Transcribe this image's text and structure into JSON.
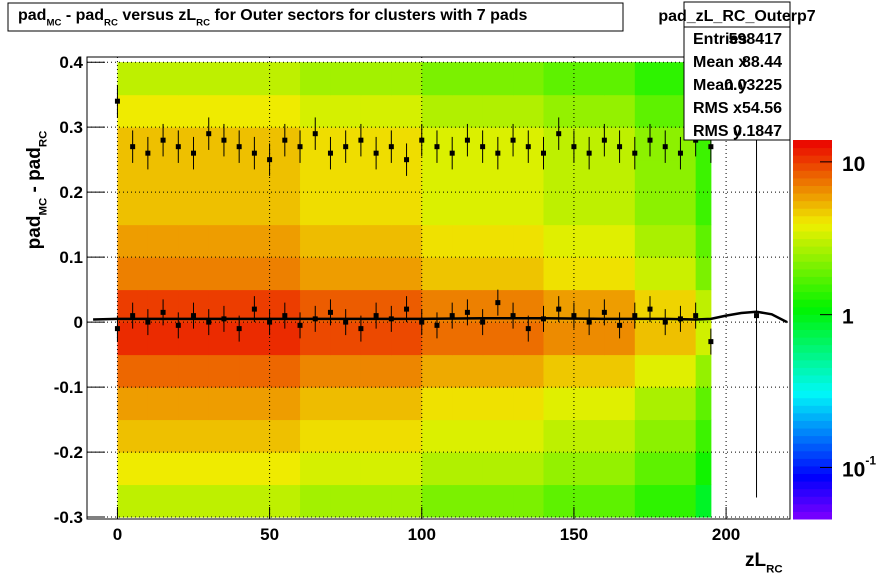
{
  "chart_data": {
    "type": "hist2d",
    "title_parts": [
      "pad",
      "MC",
      " - pad",
      "RC",
      " versus zL",
      "RC",
      " for Outer sectors for clusters with 7 pads"
    ],
    "xlabel_parts": [
      "zL",
      "RC"
    ],
    "ylabel_parts": [
      "pad",
      "MC",
      " - pad",
      "RC"
    ],
    "xlim": [
      -10,
      221
    ],
    "ylim": [
      -0.303,
      0.408
    ],
    "xticks": [
      0,
      50,
      100,
      150,
      200
    ],
    "yticks": [
      -0.3,
      -0.2,
      -0.1,
      0,
      0.1,
      0.2,
      0.3,
      0.4
    ],
    "grid": true,
    "zlog": true,
    "zlim": [
      0.046,
      13.9
    ],
    "zticks": [
      {
        "value": 0.1,
        "label": "10",
        "sup": "-1"
      },
      1,
      10
    ],
    "heatmap": {
      "xbins": [
        0,
        10,
        20,
        30,
        40,
        50,
        60,
        70,
        80,
        90,
        100,
        110,
        120,
        130,
        140,
        150,
        160,
        170,
        180,
        190,
        195
      ],
      "ybins": [
        -0.3,
        -0.25,
        -0.2,
        -0.15,
        -0.1,
        -0.05,
        0,
        0.05,
        0.1,
        0.15,
        0.2,
        0.25,
        0.3,
        0.35,
        0.4
      ],
      "z": [
        [
          3,
          3,
          3,
          3,
          3,
          3,
          2.6,
          2.6,
          2.6,
          2.6,
          2.1,
          2.1,
          2.1,
          2.1,
          1.8,
          1.8,
          1.8,
          1.4,
          1.4,
          0.9
        ],
        [
          4,
          4,
          4,
          4,
          4,
          4,
          3.4,
          3.4,
          3.4,
          3.4,
          2.8,
          2.8,
          2.8,
          2.8,
          2.4,
          2.4,
          2.4,
          1.8,
          1.8,
          1.2
        ],
        [
          5,
          5,
          5,
          5,
          5,
          5,
          4.3,
          4.3,
          4.3,
          4.3,
          3.5,
          3.5,
          3.5,
          3.5,
          3,
          3,
          3,
          2.3,
          2.3,
          1.5
        ],
        [
          6,
          6,
          6,
          6,
          6,
          6,
          5.1,
          5.1,
          5.1,
          5.1,
          4.2,
          4.2,
          4.2,
          4.2,
          3.6,
          3.6,
          3.6,
          2.7,
          2.7,
          1.8
        ],
        [
          8,
          8,
          8,
          8,
          8,
          8,
          6.8,
          6.8,
          6.8,
          6.8,
          5.6,
          5.6,
          5.6,
          5.6,
          4.8,
          4.8,
          4.8,
          3.6,
          3.6,
          2.4
        ],
        [
          11,
          11,
          11,
          11,
          11,
          11,
          9.4,
          9.4,
          9.4,
          9.4,
          7.7,
          7.7,
          7.7,
          7.7,
          6.6,
          6.6,
          6.6,
          5,
          5,
          3.3
        ],
        [
          10,
          10,
          10,
          10,
          10,
          10,
          8.5,
          8.5,
          8.5,
          8.5,
          7,
          7,
          7,
          7,
          6,
          6,
          6,
          4.5,
          4.5,
          3
        ],
        [
          7,
          7,
          7,
          7,
          7,
          7,
          6,
          6,
          6,
          6,
          4.9,
          4.9,
          4.9,
          4.9,
          4.2,
          4.2,
          4.2,
          3.2,
          3.2,
          2.1
        ],
        [
          6,
          6,
          6,
          6,
          6,
          6,
          5.1,
          5.1,
          5.1,
          5.1,
          4.2,
          4.2,
          4.2,
          4.2,
          3.6,
          3.6,
          3.6,
          2.7,
          2.7,
          1.8
        ],
        [
          5,
          5,
          5,
          5,
          5,
          5,
          4.3,
          4.3,
          4.3,
          4.3,
          3.5,
          3.5,
          3.5,
          3.5,
          3,
          3,
          3,
          2.3,
          2.3,
          1.5
        ],
        [
          5,
          5,
          5,
          5,
          5,
          5,
          4.3,
          4.3,
          4.3,
          4.3,
          3.5,
          3.5,
          3.5,
          3.5,
          3,
          3,
          3,
          2.3,
          2.3,
          1.5
        ],
        [
          5,
          5,
          5,
          5,
          5,
          5,
          4.3,
          4.3,
          4.3,
          4.3,
          3.5,
          3.5,
          3.5,
          3.5,
          3,
          3,
          3,
          2.3,
          2.3,
          1.5
        ],
        [
          4,
          4,
          4,
          4,
          4,
          4,
          3.4,
          3.4,
          3.4,
          3.4,
          2.8,
          2.8,
          2.8,
          2.8,
          2.4,
          2.4,
          2.4,
          1.8,
          1.8,
          1.2
        ],
        [
          3,
          3,
          3,
          3,
          3,
          3,
          2.6,
          2.6,
          2.6,
          2.6,
          2.1,
          2.1,
          2.1,
          2.1,
          1.8,
          1.8,
          1.8,
          1.4,
          1.4,
          0.9
        ]
      ]
    },
    "series": [
      {
        "color": "#000000",
        "x": [
          0,
          5,
          10,
          15,
          20,
          25,
          30,
          35,
          40,
          45,
          50,
          55,
          60,
          65,
          70,
          75,
          80,
          85,
          90,
          95,
          100,
          105,
          110,
          115,
          120,
          125,
          130,
          135,
          140,
          145,
          150,
          155,
          160,
          165,
          170,
          175,
          180,
          185,
          190,
          195,
          210
        ],
        "values": [
          -0.01,
          0.01,
          0.0,
          0.015,
          -0.005,
          0.01,
          0.0,
          0.005,
          -0.01,
          0.02,
          0.0,
          0.01,
          -0.005,
          0.005,
          0.015,
          0.0,
          -0.01,
          0.01,
          0.005,
          0.02,
          0.0,
          -0.005,
          0.01,
          0.015,
          0.0,
          0.03,
          0.01,
          -0.01,
          0.005,
          0.02,
          0.01,
          0.0,
          0.015,
          -0.005,
          0.01,
          0.02,
          0.0,
          0.005,
          0.01,
          -0.03,
          0.01
        ],
        "errors": [
          0.02,
          0.02,
          0.02,
          0.02,
          0.02,
          0.02,
          0.02,
          0.02,
          0.02,
          0.02,
          0.02,
          0.02,
          0.02,
          0.02,
          0.02,
          0.02,
          0.02,
          0.02,
          0.02,
          0.02,
          0.02,
          0.02,
          0.02,
          0.02,
          0.02,
          0.02,
          0.02,
          0.02,
          0.02,
          0.02,
          0.02,
          0.02,
          0.02,
          0.02,
          0.02,
          0.02,
          0.02,
          0.02,
          0.02,
          0.02,
          0.28
        ]
      },
      {
        "color": "#000000",
        "x": [
          0,
          5,
          10,
          15,
          20,
          25,
          30,
          35,
          40,
          45,
          50,
          55,
          60,
          65,
          70,
          75,
          80,
          85,
          90,
          95,
          100,
          105,
          110,
          115,
          120,
          125,
          130,
          135,
          140,
          145,
          150,
          155,
          160,
          165,
          170,
          175,
          180,
          185,
          190,
          195
        ],
        "values": [
          0.34,
          0.27,
          0.26,
          0.28,
          0.27,
          0.26,
          0.29,
          0.28,
          0.27,
          0.26,
          0.25,
          0.28,
          0.27,
          0.29,
          0.26,
          0.27,
          0.28,
          0.26,
          0.27,
          0.25,
          0.28,
          0.27,
          0.26,
          0.28,
          0.27,
          0.26,
          0.28,
          0.27,
          0.26,
          0.29,
          0.27,
          0.26,
          0.28,
          0.27,
          0.26,
          0.28,
          0.27,
          0.26,
          0.28,
          0.27
        ],
        "errors": [
          0.025,
          0.025,
          0.025,
          0.025,
          0.025,
          0.025,
          0.025,
          0.025,
          0.025,
          0.025,
          0.025,
          0.025,
          0.025,
          0.025,
          0.025,
          0.025,
          0.025,
          0.025,
          0.025,
          0.025,
          0.025,
          0.025,
          0.025,
          0.025,
          0.025,
          0.025,
          0.025,
          0.025,
          0.025,
          0.025,
          0.025,
          0.025,
          0.025,
          0.025,
          0.025,
          0.025,
          0.025,
          0.025,
          0.025,
          0.025
        ]
      }
    ],
    "fit": {
      "color": "#000000",
      "x": [
        -8,
        0,
        20,
        40,
        60,
        80,
        100,
        120,
        140,
        160,
        180,
        190,
        195,
        200,
        205,
        210,
        215,
        220
      ],
      "values": [
        0.004,
        0.005,
        0.005,
        0.005,
        0.005,
        0.005,
        0.005,
        0.006,
        0.006,
        0.005,
        0.005,
        0.004,
        0.005,
        0.01,
        0.014,
        0.016,
        0.012,
        0.0
      ]
    },
    "stats": {
      "name": "pad_zL_RC_Outerp7",
      "rows": [
        {
          "label": "Entries",
          "value": 598417
        },
        {
          "label": "Mean x",
          "value": 88.44
        },
        {
          "label": "Mean y",
          "value": 0.03225
        },
        {
          "label": "RMS x",
          "value": 54.56
        },
        {
          "label": "RMS y",
          "value": 0.1847
        }
      ]
    }
  }
}
